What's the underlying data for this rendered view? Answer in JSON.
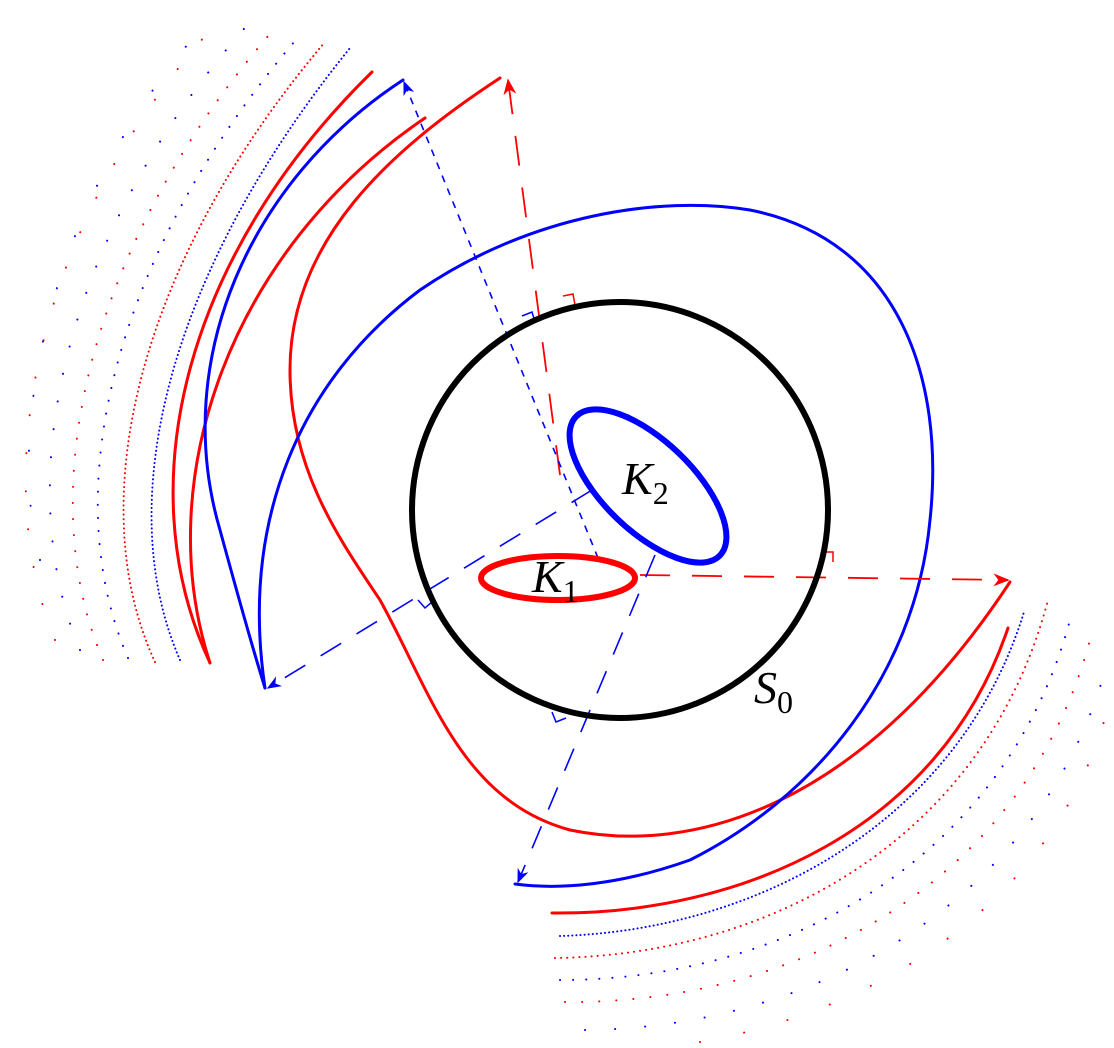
{
  "labels": {
    "k1": {
      "main": "K",
      "sub": "1"
    },
    "k2": {
      "main": "K",
      "sub": "2"
    },
    "s0": {
      "main": "S",
      "sub": "0"
    }
  },
  "colors": {
    "red": "#ff0000",
    "blue": "#0000ff",
    "black": "#000000"
  }
}
